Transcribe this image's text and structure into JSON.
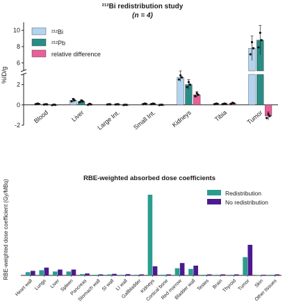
{
  "chart_data": [
    {
      "type": "bar",
      "title": "²¹²Bi redistribution study",
      "subtitle": "(n = 4)",
      "ylabel": "%ID/g",
      "categories": [
        "Blood",
        "Liver",
        "Large Int.",
        "Small Int.",
        "Kidneys",
        "Tibia",
        "Tumor"
      ],
      "y_axis_break": {
        "lower": [
          -2,
          3
        ],
        "upper": [
          5,
          11
        ]
      },
      "ticks_lower": [
        -2,
        0,
        2
      ],
      "ticks_upper": [
        6,
        8,
        10
      ],
      "legend_position": "top-left",
      "colors": {
        "Bi": "#b3d4f0",
        "Pb": "#2a8c86",
        "diff": "#e8609a",
        "points": "#111111"
      },
      "series": [
        {
          "name": "²¹²Bi",
          "values": [
            0.1,
            0.45,
            0.05,
            0.1,
            2.7,
            0.1,
            7.8
          ],
          "errors": [
            0.05,
            0.2,
            0.03,
            0.05,
            0.4,
            0.05,
            1.5
          ]
        },
        {
          "name": "²¹²Pb",
          "values": [
            0.05,
            0.35,
            0.05,
            0.1,
            2.0,
            0.1,
            8.8
          ],
          "errors": [
            0.03,
            0.15,
            0.03,
            0.05,
            0.5,
            0.05,
            1.8
          ]
        },
        {
          "name": "relative difference",
          "values": [
            0.0,
            0.05,
            0.0,
            0.0,
            1.0,
            0.15,
            -1.1
          ],
          "errors": [
            0.05,
            0.1,
            0.03,
            0.03,
            0.3,
            0.1,
            0.4
          ]
        }
      ]
    },
    {
      "type": "bar",
      "title": "RBE-weighted absorbed dose coefficients",
      "ylabel": "RBE-weighted dose coefficient (Gy/MBq)",
      "ylim": [
        0,
        70
      ],
      "legend_position": "top-right",
      "colors": {
        "Redistribution": "#2a9d8f",
        "No redistribution": "#4b1a8f"
      },
      "categories": [
        "Heart wall",
        "Lungs",
        "Liver",
        "Spleen",
        "Pancreas",
        "Stomach wall",
        "SI wall",
        "LI wall",
        "Gallbladder",
        "Kidneys",
        "Cortical bone",
        "Red marrow",
        "Bladder wall",
        "Testes",
        "Brain",
        "Thyroid",
        "Tumor",
        "Skin",
        "Other tissues"
      ],
      "series": [
        {
          "name": "Redistribution",
          "values": [
            2.5,
            4,
            3,
            3,
            1,
            0.5,
            0.8,
            0.5,
            0.5,
            62,
            0.5,
            5.5,
            5,
            0.5,
            0.5,
            0.5,
            14,
            0.3,
            0.5
          ]
        },
        {
          "name": "No redistribution",
          "values": [
            3.5,
            6,
            4.5,
            4.5,
            1.5,
            0.8,
            1.2,
            1,
            0.8,
            7,
            0.8,
            9.5,
            7.5,
            0.8,
            0.8,
            0.8,
            23.5,
            0.5,
            0.8
          ]
        }
      ]
    }
  ]
}
